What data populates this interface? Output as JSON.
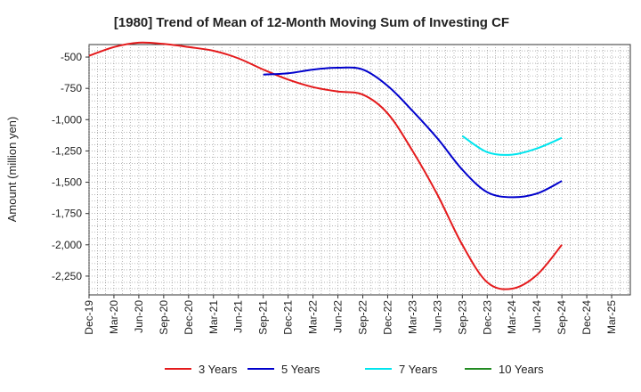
{
  "chart_data": {
    "type": "line",
    "title": "[1980]  Trend of Mean of 12-Month Moving Sum of Investing CF",
    "xlabel": "",
    "ylabel": "Amount (million yen)",
    "ylim": [
      -2400,
      -400
    ],
    "yticks": [
      -500,
      -750,
      -1000,
      -1250,
      -1500,
      -1750,
      -2000,
      -2250
    ],
    "ytick_labels": [
      "-500",
      "-750",
      "-1,000",
      "-1,250",
      "-1,500",
      "-1,750",
      "-2,000",
      "-2,250"
    ],
    "x": [
      "Dec-19",
      "Mar-20",
      "Jun-20",
      "Sep-20",
      "Dec-20",
      "Mar-21",
      "Jun-21",
      "Sep-21",
      "Dec-21",
      "Mar-22",
      "Jun-22",
      "Sep-22",
      "Dec-22",
      "Mar-23",
      "Jun-23",
      "Sep-23",
      "Dec-23",
      "Mar-24",
      "Jun-24",
      "Sep-24",
      "Dec-24",
      "Mar-25"
    ],
    "grid": true,
    "legend_position": "bottom",
    "series": [
      {
        "name": "3 Years",
        "color": "#e41a1c",
        "values": [
          -490,
          -420,
          -385,
          -395,
          -420,
          -450,
          -510,
          -600,
          -680,
          -740,
          -775,
          -800,
          -950,
          -1250,
          -1600,
          -2000,
          -2300,
          -2350,
          -2240,
          -2000,
          null,
          null
        ]
      },
      {
        "name": "5 Years",
        "color": "#0000cc",
        "values": [
          null,
          null,
          null,
          null,
          null,
          null,
          null,
          -640,
          -630,
          -600,
          -585,
          -600,
          -730,
          -930,
          -1150,
          -1400,
          -1580,
          -1620,
          -1590,
          -1490,
          null,
          null
        ]
      },
      {
        "name": "7 Years",
        "color": "#00e5ee",
        "values": [
          null,
          null,
          null,
          null,
          null,
          null,
          null,
          null,
          null,
          null,
          null,
          null,
          null,
          null,
          null,
          -1130,
          -1260,
          -1280,
          -1230,
          -1145,
          null,
          null
        ]
      },
      {
        "name": "10 Years",
        "color": "#228b22",
        "values": [
          null,
          null,
          null,
          null,
          null,
          null,
          null,
          null,
          null,
          null,
          null,
          null,
          null,
          null,
          null,
          null,
          null,
          null,
          null,
          null,
          null,
          null
        ]
      }
    ]
  }
}
